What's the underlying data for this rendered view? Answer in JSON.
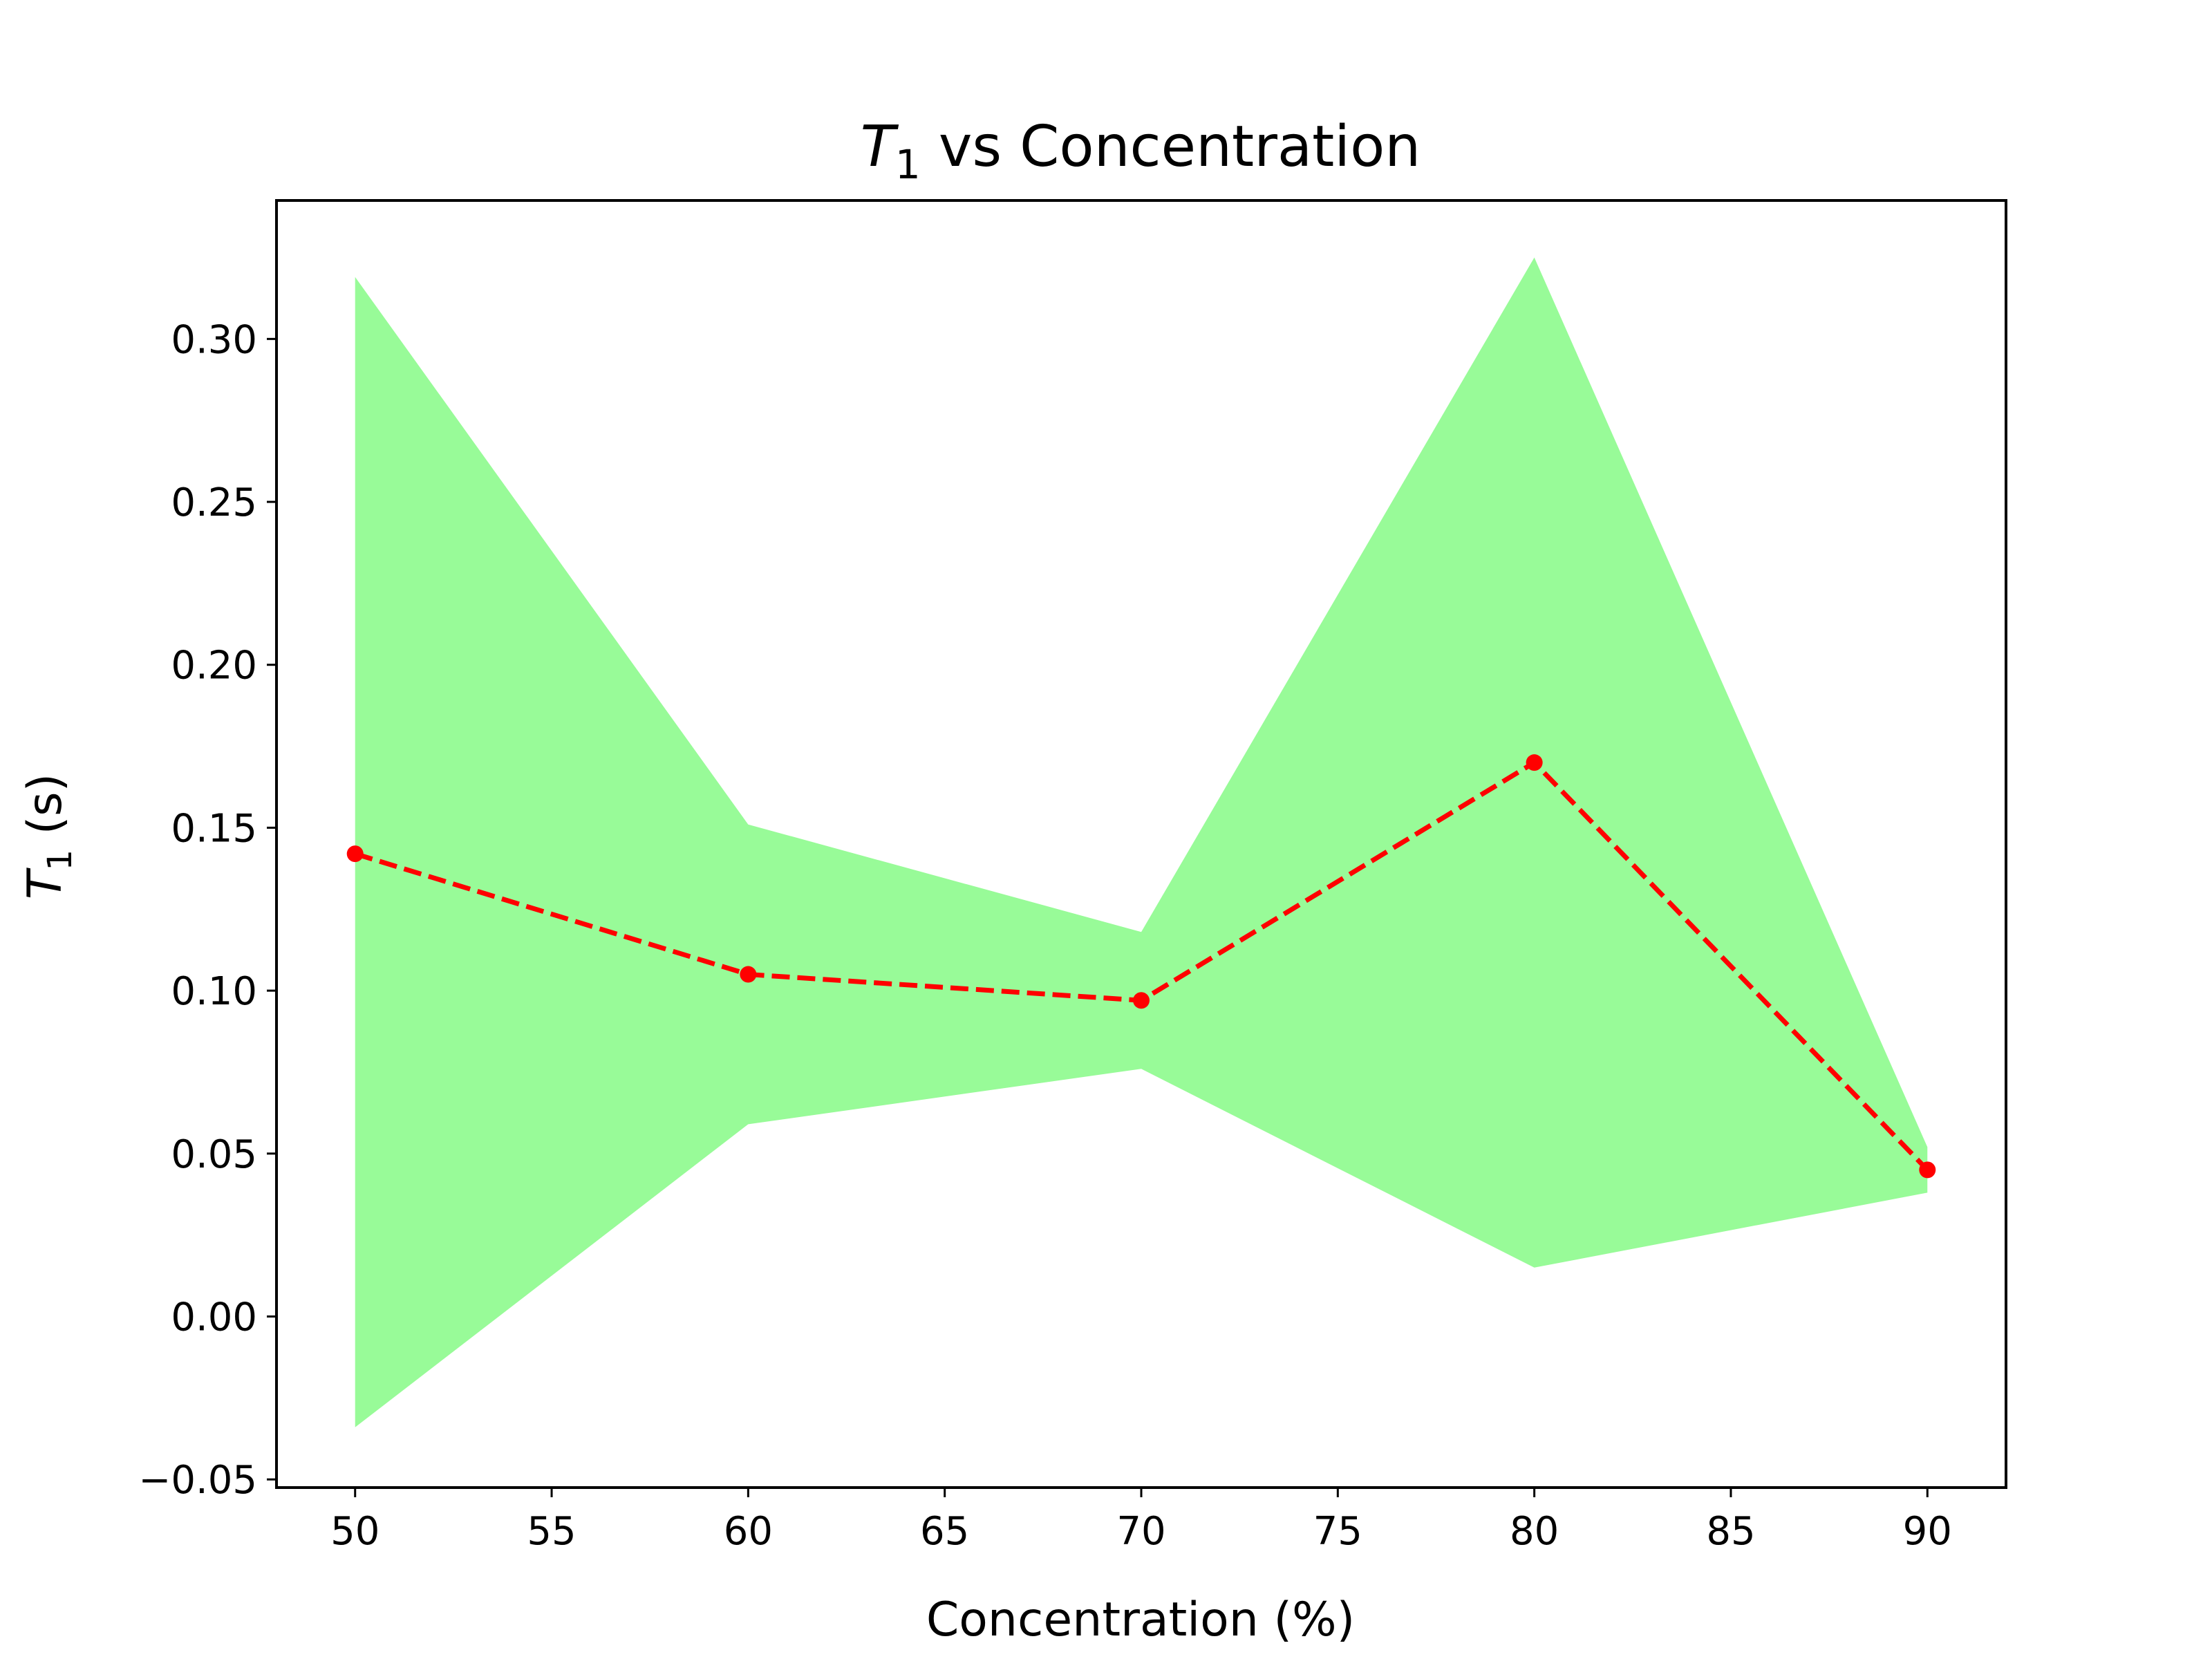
{
  "chart_data": {
    "type": "line",
    "title": {
      "symbol": "T",
      "subscript": "1",
      "rest": " vs Concentration"
    },
    "xlabel": "Concentration (%)",
    "ylabel": {
      "symbol": "T",
      "subscript": "1",
      "rest": " (s)"
    },
    "xlim": [
      48,
      92
    ],
    "ylim": [
      -0.0525,
      0.3425
    ],
    "xticks": [
      50,
      55,
      60,
      65,
      70,
      75,
      80,
      85,
      90
    ],
    "xtick_labels": [
      "50",
      "55",
      "60",
      "65",
      "70",
      "75",
      "80",
      "85",
      "90"
    ],
    "yticks": [
      -0.05,
      0.0,
      0.05,
      0.1,
      0.15,
      0.2,
      0.25,
      0.3
    ],
    "ytick_labels": [
      "−0.05",
      "0.00",
      "0.05",
      "0.10",
      "0.15",
      "0.20",
      "0.25",
      "0.30"
    ],
    "grid": false,
    "x": [
      50,
      60,
      70,
      80,
      90
    ],
    "series": [
      {
        "values": [
          0.142,
          0.105,
          0.097,
          0.17,
          0.045
        ],
        "color": "#ff0000",
        "line_style": "dashed",
        "marker": "circle"
      }
    ],
    "band": {
      "lower": [
        -0.034,
        0.059,
        0.076,
        0.015,
        0.038
      ],
      "upper": [
        0.319,
        0.151,
        0.118,
        0.325,
        0.052
      ],
      "color": "#98fb98"
    }
  }
}
